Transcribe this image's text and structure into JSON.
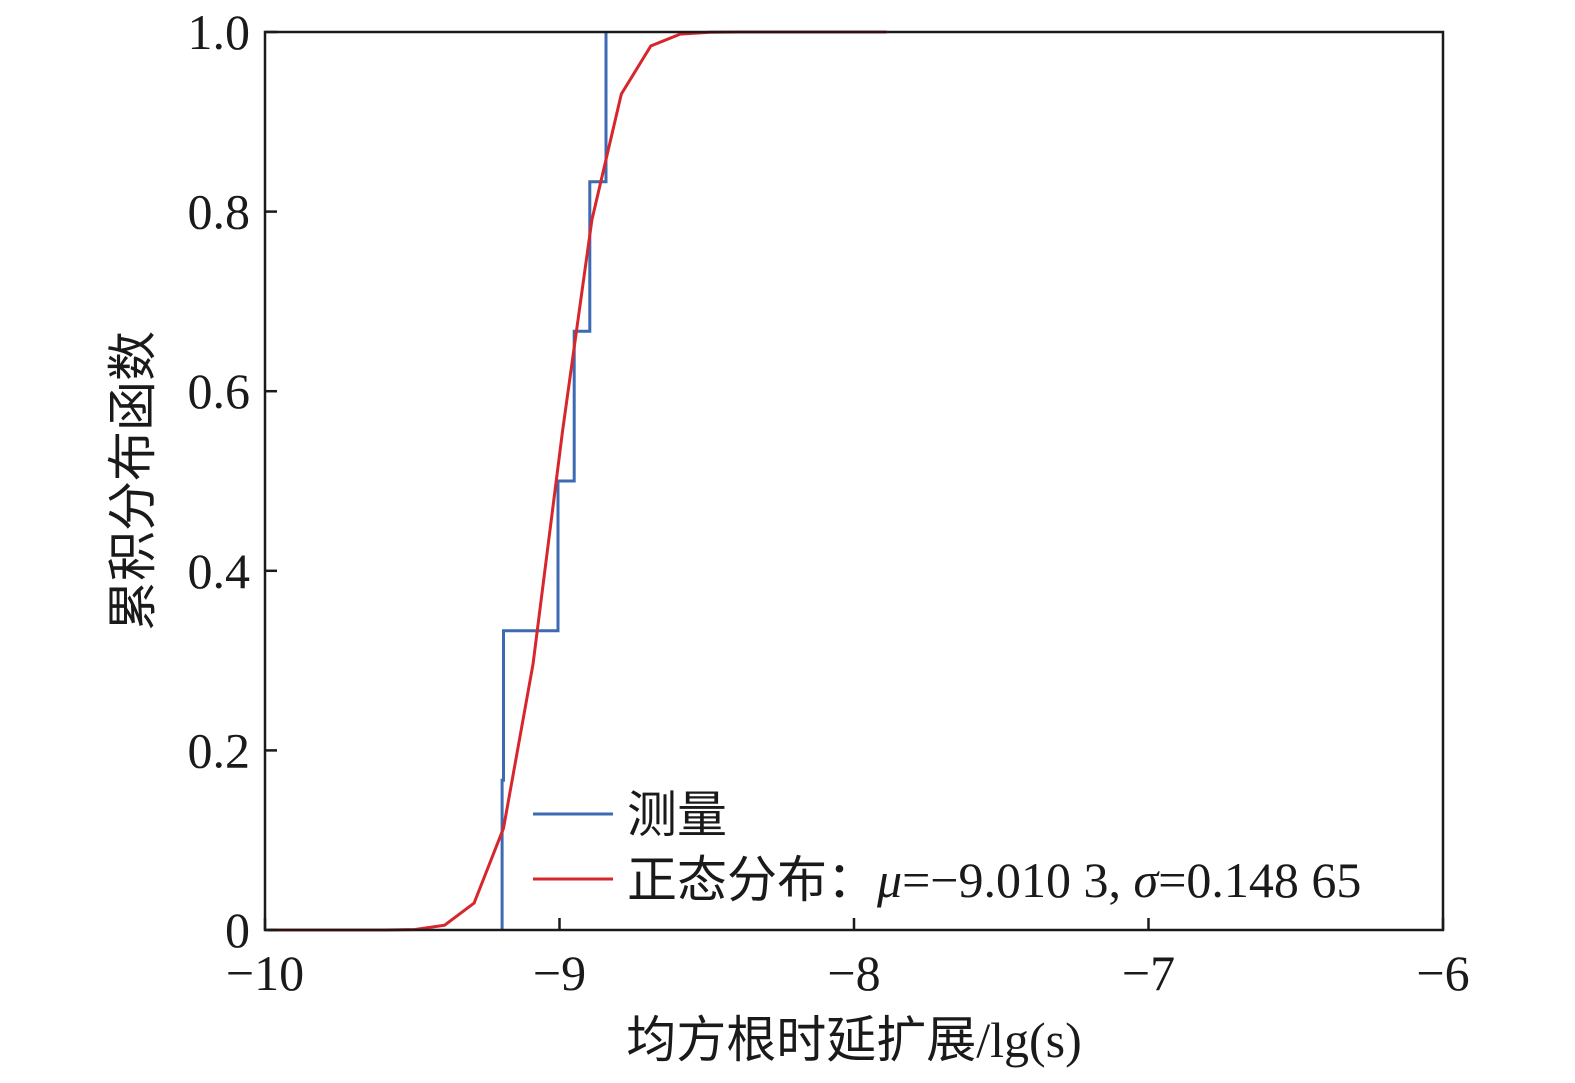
{
  "chart_data": {
    "type": "line",
    "xlabel": "均方根时延扩展/lg(s)",
    "ylabel": "累积分布函数",
    "xlim": [
      -10,
      -6
    ],
    "ylim": [
      0,
      1
    ],
    "xticks": [
      -10,
      -9,
      -8,
      -7,
      -6
    ],
    "xticklabels": [
      "−10",
      "−9",
      "−8",
      "−7",
      "−6"
    ],
    "yticks": [
      0,
      0.2,
      0.4,
      0.6,
      0.8,
      1.0
    ],
    "yticklabels": [
      "0",
      "0.2",
      "0.4",
      "0.6",
      "0.8",
      "1.0"
    ],
    "grid": false,
    "legend_position": "lower-center",
    "series": [
      {
        "name": "测量",
        "style": "step",
        "color": "#3d6ab3",
        "x": [
          -9.195,
          -9.19,
          -9.005,
          -8.95,
          -8.897,
          -8.842
        ],
        "y": [
          0.1667,
          0.3333,
          0.5,
          0.6667,
          0.8333,
          1.0
        ]
      },
      {
        "name": "正态分布：μ=−9.010 3, σ=0.148 65",
        "style": "line",
        "color": "#d7262c",
        "x": [
          -9.99,
          -9.89,
          -9.79,
          -9.69,
          -9.59,
          -9.49,
          -9.39,
          -9.29,
          -9.19,
          -9.09,
          -8.99,
          -8.89,
          -8.79,
          -8.69,
          -8.59,
          -8.49,
          -8.39,
          -8.29,
          -8.19,
          -8.09,
          -7.99,
          -7.89
        ],
        "y": [
          0,
          0,
          0,
          0,
          0,
          0.0006,
          0.0053,
          0.0299,
          0.1134,
          0.2959,
          0.5543,
          0.7908,
          0.9308,
          0.9844,
          0.9977,
          0.9998,
          1.0,
          1.0,
          1.0,
          1.0,
          1.0,
          1.0
        ]
      }
    ]
  }
}
